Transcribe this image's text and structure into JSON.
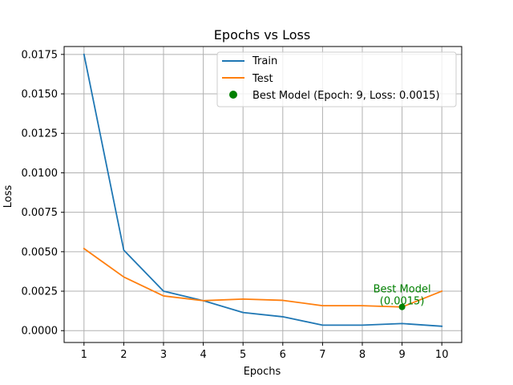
{
  "chart_data": {
    "type": "line",
    "title": "Epochs vs Loss",
    "xlabel": "Epochs",
    "ylabel": "Loss",
    "x": [
      1,
      2,
      3,
      4,
      5,
      6,
      7,
      8,
      9,
      10
    ],
    "xlim": [
      0.5,
      10.5
    ],
    "ylim": [
      -0.00075,
      0.018
    ],
    "xticks": [
      1,
      2,
      3,
      4,
      5,
      6,
      7,
      8,
      9,
      10
    ],
    "yticks": [
      0.0,
      0.0025,
      0.005,
      0.0075,
      0.01,
      0.0125,
      0.015,
      0.0175
    ],
    "ytick_labels": [
      "0.0000",
      "0.0025",
      "0.0050",
      "0.0075",
      "0.0100",
      "0.0125",
      "0.0150",
      "0.0175"
    ],
    "grid": true,
    "legend_position": "top-right",
    "series": [
      {
        "name": "Train",
        "color": "#1f77b4",
        "values": [
          0.0175,
          0.0051,
          0.0025,
          0.0019,
          0.00115,
          0.00088,
          0.00035,
          0.00035,
          0.00045,
          0.00028
        ]
      },
      {
        "name": "Test",
        "color": "#ff7f0e",
        "values": [
          0.0052,
          0.0034,
          0.0022,
          0.0019,
          0.002,
          0.00192,
          0.00158,
          0.00158,
          0.0015,
          0.0025
        ]
      }
    ],
    "best_point": {
      "label": "Best Model (Epoch: 9, Loss: 0.0015)",
      "x": 9,
      "y": 0.0015,
      "color": "#008000"
    },
    "annotation": {
      "line1": "Best Model",
      "line2": "(0.0015)",
      "color": "#008000"
    }
  }
}
